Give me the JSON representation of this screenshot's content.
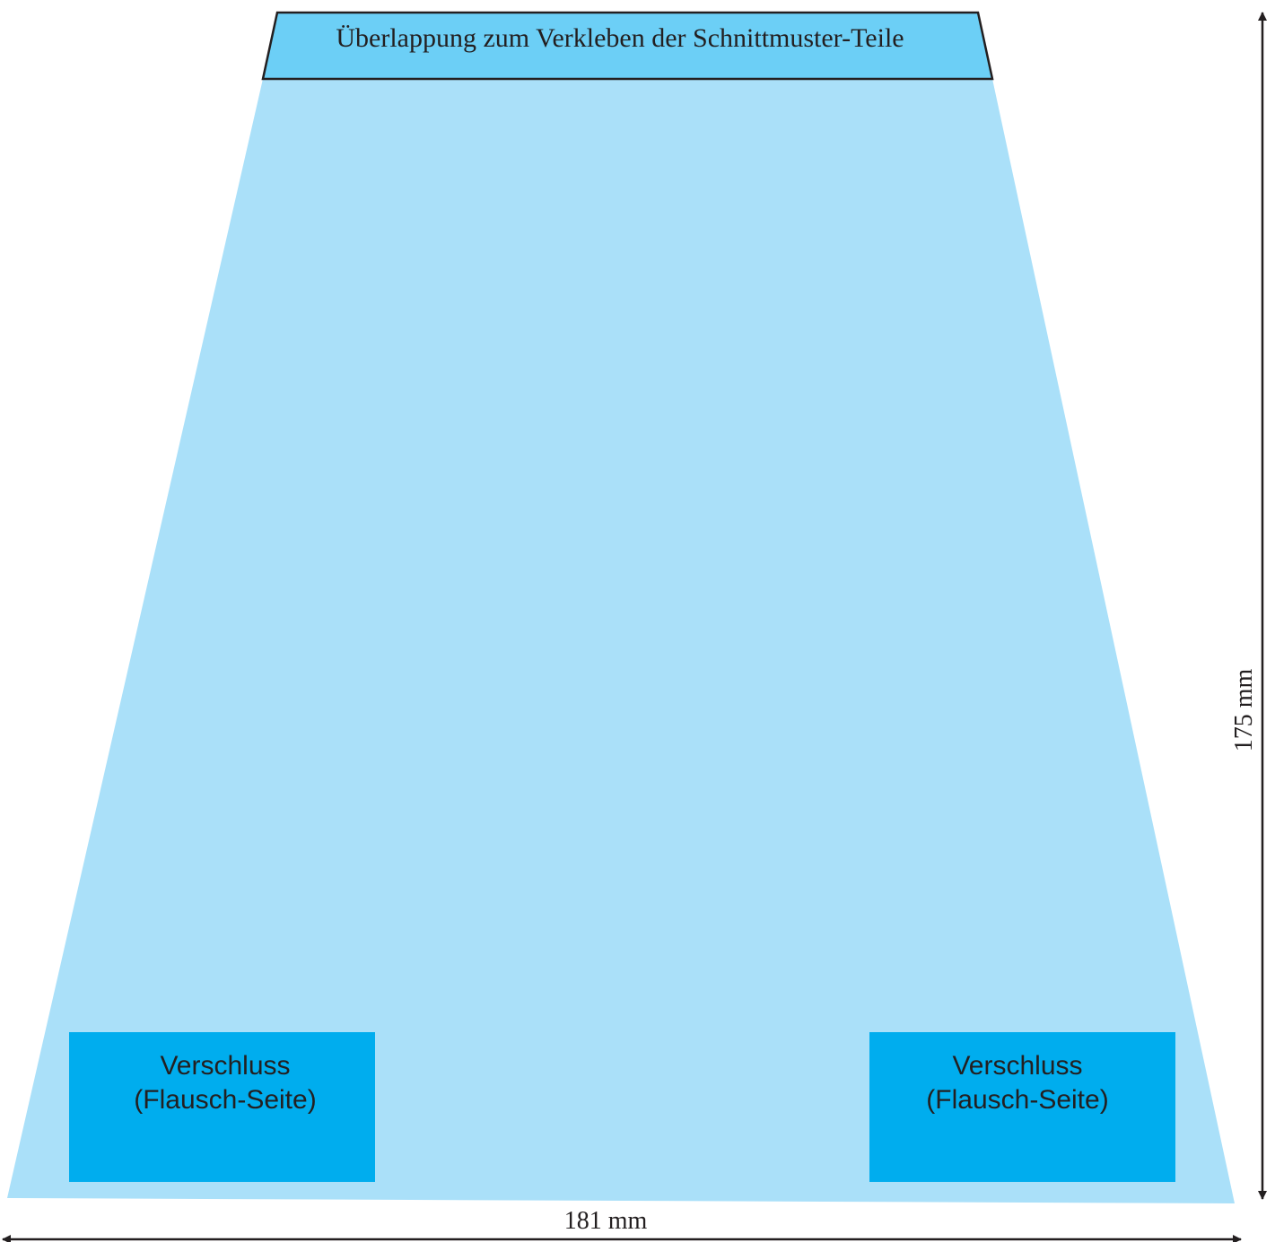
{
  "overlap_tab": {
    "label": "Überlappung zum Verkleben der Schnittmuster-Teile"
  },
  "fasteners": [
    {
      "line1": "Verschluss",
      "line2": "(Flausch-Seite)"
    },
    {
      "line1": "Verschluss",
      "line2": "(Flausch-Seite)"
    }
  ],
  "dimensions": {
    "width_label": "181 mm",
    "height_label": "175 mm"
  },
  "colors": {
    "pattern_fill": "#aae0f9",
    "tab_fill": "#6ccff6",
    "fastener_fill": "#00adee",
    "outline": "#231f20"
  }
}
